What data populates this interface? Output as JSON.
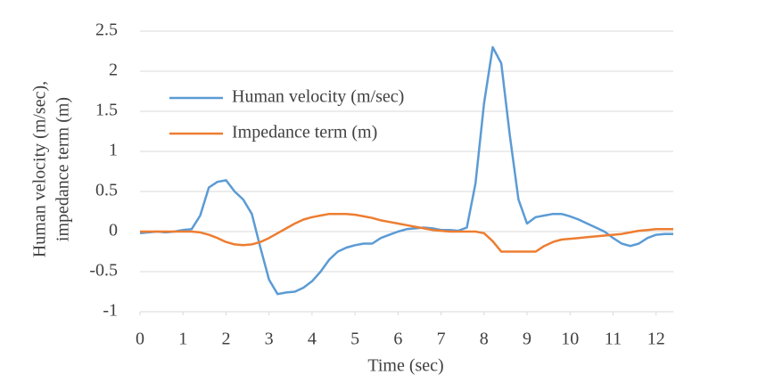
{
  "chart_data": {
    "type": "line",
    "x_label": "Time (sec)",
    "y_label": [
      "Human velocity (m/sec),",
      "impedance term (m)"
    ],
    "x": [
      0,
      0.2,
      0.4,
      0.6,
      0.8,
      1.0,
      1.2,
      1.4,
      1.6,
      1.8,
      2.0,
      2.2,
      2.4,
      2.6,
      2.8,
      3.0,
      3.2,
      3.4,
      3.6,
      3.8,
      4.0,
      4.2,
      4.4,
      4.6,
      4.8,
      5.0,
      5.2,
      5.4,
      5.6,
      5.8,
      6.0,
      6.2,
      6.4,
      6.6,
      6.8,
      7.0,
      7.2,
      7.4,
      7.6,
      7.8,
      8.0,
      8.2,
      8.4,
      8.6,
      8.8,
      9.0,
      9.2,
      9.4,
      9.6,
      9.8,
      10.0,
      10.2,
      10.4,
      10.6,
      10.8,
      11.0,
      11.2,
      11.4,
      11.6,
      11.8,
      12.0,
      12.2,
      12.4
    ],
    "series": [
      {
        "name": "Human velocity (m/sec)",
        "color": "#5b9bd5",
        "values": [
          -0.02,
          -0.01,
          0,
          -0.01,
          0,
          0.02,
          0.03,
          0.2,
          0.55,
          0.62,
          0.64,
          0.5,
          0.4,
          0.22,
          -0.2,
          -0.6,
          -0.78,
          -0.76,
          -0.75,
          -0.7,
          -0.62,
          -0.5,
          -0.35,
          -0.25,
          -0.2,
          -0.17,
          -0.15,
          -0.15,
          -0.08,
          -0.04,
          0,
          0.03,
          0.04,
          0.05,
          0.04,
          0.02,
          0.02,
          0.01,
          0.05,
          0.6,
          1.6,
          2.3,
          2.1,
          1.2,
          0.4,
          0.1,
          0.18,
          0.2,
          0.22,
          0.22,
          0.19,
          0.15,
          0.1,
          0.05,
          0,
          -0.08,
          -0.15,
          -0.18,
          -0.15,
          -0.08,
          -0.04,
          -0.03,
          -0.03
        ]
      },
      {
        "name": "Impedance term (m)",
        "color": "#ed7d31",
        "values": [
          0,
          0,
          0,
          0,
          0,
          0,
          0,
          -0.01,
          -0.04,
          -0.08,
          -0.13,
          -0.16,
          -0.17,
          -0.16,
          -0.13,
          -0.08,
          -0.02,
          0.04,
          0.1,
          0.15,
          0.18,
          0.2,
          0.22,
          0.22,
          0.22,
          0.21,
          0.19,
          0.17,
          0.14,
          0.12,
          0.1,
          0.08,
          0.06,
          0.04,
          0.02,
          0.01,
          0,
          0,
          0,
          0,
          -0.02,
          -0.12,
          -0.25,
          -0.25,
          -0.25,
          -0.25,
          -0.25,
          -0.18,
          -0.13,
          -0.1,
          -0.09,
          -0.08,
          -0.07,
          -0.06,
          -0.05,
          -0.04,
          -0.03,
          -0.01,
          0.01,
          0.02,
          0.03,
          0.03,
          0.03
        ]
      }
    ],
    "xlim": [
      0,
      12.4
    ],
    "xticks": [
      0,
      1,
      2,
      3,
      4,
      5,
      6,
      7,
      8,
      9,
      10,
      11,
      12
    ],
    "ylim": [
      -1,
      2.5
    ],
    "yticks": [
      -1,
      -0.5,
      0,
      0.5,
      1,
      1.5,
      2,
      2.5
    ],
    "grid": true,
    "legend": "upper left"
  }
}
